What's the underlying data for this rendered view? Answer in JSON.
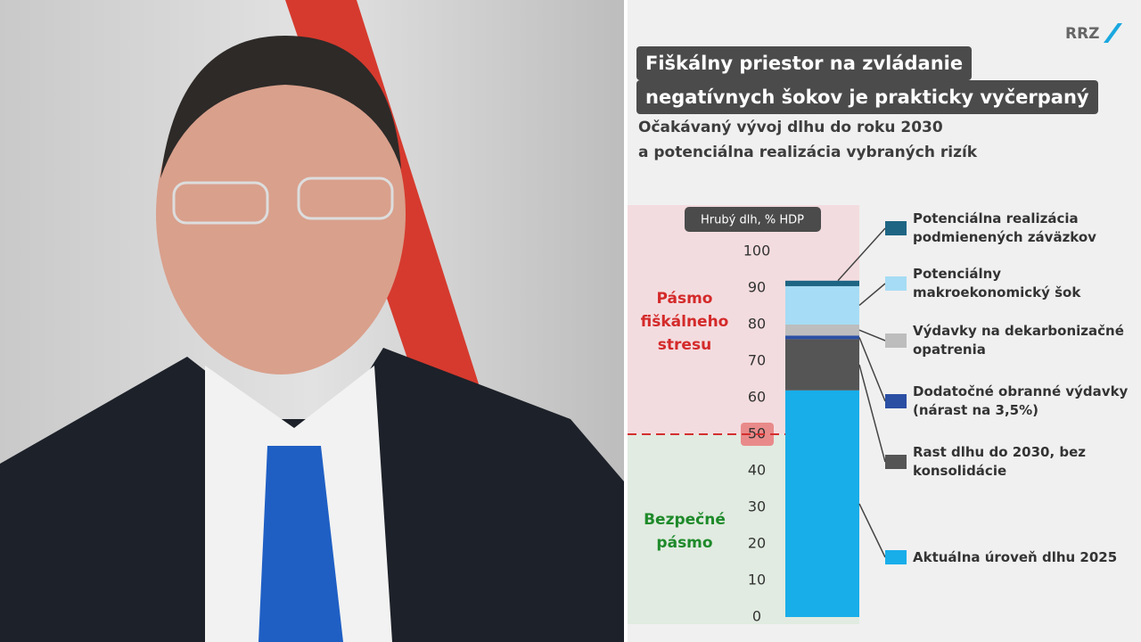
{
  "logo": "RRZ",
  "chart_data": {
    "type": "stacked-bar",
    "title_lines": [
      "Fiškálny priestor na zvládanie",
      "negatívnych šokov je prakticky vyčerpaný"
    ],
    "subtitle_lines": [
      "Očakávaný vývoj dlhu do roku 2030",
      "a potenciálna realizácia vybraných rizík"
    ],
    "y_label": "Hrubý dlh, % HDP",
    "ylim": [
      0,
      100
    ],
    "yticks": [
      0,
      10,
      20,
      30,
      40,
      50,
      60,
      70,
      80,
      90,
      100
    ],
    "threshold": 50,
    "zones": [
      {
        "label": "Pásmo fiškálneho stresu",
        "color": "#d42a2a"
      },
      {
        "label": "Bezpečné pásmo",
        "color": "#1e8a2a"
      }
    ],
    "series": [
      {
        "name": "Aktuálna úroveň dlhu 2025",
        "color": "#18aeea",
        "values": [
          62
        ]
      },
      {
        "name": "Rast dlhu do 2030, bez konsolidácie",
        "color": "#555555",
        "values": [
          14
        ]
      },
      {
        "name": "Dodatočné obranné výdavky (nárast na 3,5%)",
        "color": "#2b4fa3",
        "values": [
          1
        ]
      },
      {
        "name": "Výdavky na dekarbonizačné opatrenia",
        "color": "#bdbdbd",
        "values": [
          3
        ]
      },
      {
        "name": "Potenciálny makroekonomický šok",
        "color": "#a6dcf5",
        "values": [
          10.5
        ]
      },
      {
        "name": "Potenciálna realizácia podmienených záväzkov",
        "color": "#1e6584",
        "values": [
          1.5
        ]
      }
    ]
  }
}
